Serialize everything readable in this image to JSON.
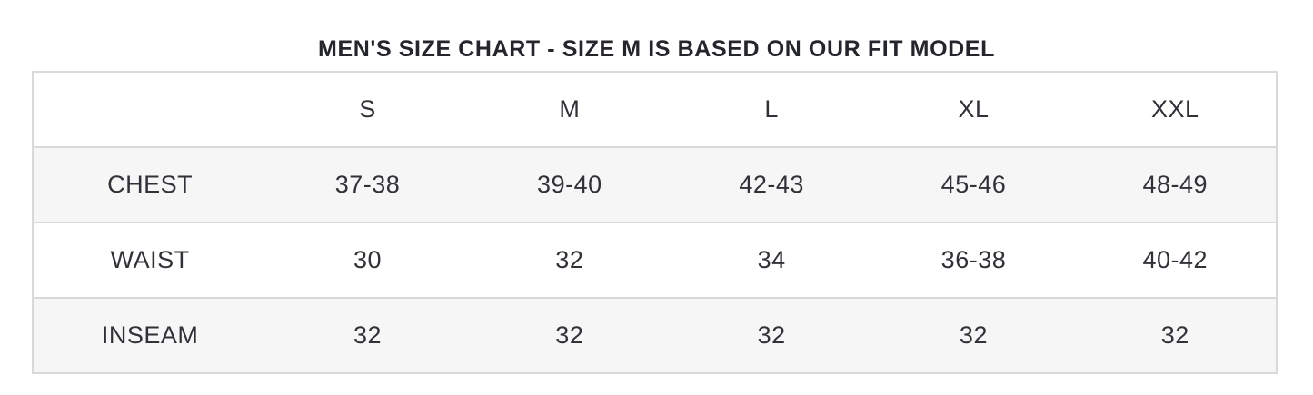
{
  "title": "MEN'S SIZE CHART - SIZE M IS BASED ON OUR FIT MODEL",
  "chart_data": {
    "type": "table",
    "columns": [
      "",
      "S",
      "M",
      "L",
      "XL",
      "XXL"
    ],
    "rows": [
      {
        "label": "CHEST",
        "values": [
          "37-38",
          "39-40",
          "42-43",
          "45-46",
          "48-49"
        ]
      },
      {
        "label": "WAIST",
        "values": [
          "30",
          "32",
          "34",
          "36-38",
          "40-42"
        ]
      },
      {
        "label": "INSEAM",
        "values": [
          "32",
          "32",
          "32",
          "32",
          "32"
        ]
      }
    ],
    "layout": {
      "striped_rows": [
        "CHEST",
        "INSEAM"
      ],
      "grid": "horizontal-only",
      "header_background": "#ffffff"
    }
  },
  "colors": {
    "title_text": "#24262b",
    "cell_text": "#303237",
    "border": "#d9d9d9",
    "stripe_background": "#f6f6f6",
    "page_background": "#ffffff"
  }
}
